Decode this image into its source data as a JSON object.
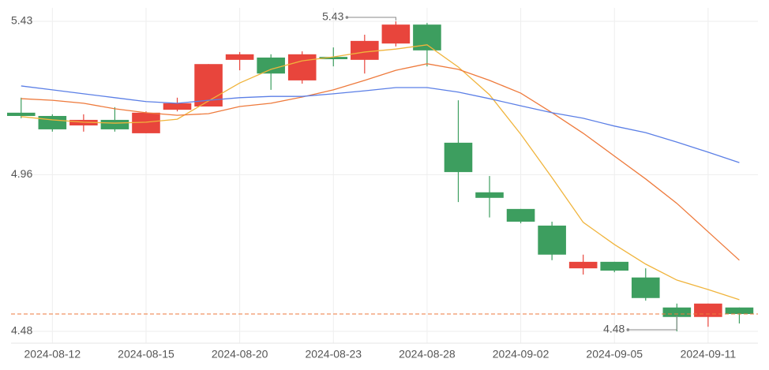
{
  "chart_data": {
    "type": "candlestick",
    "categories": [
      null,
      "2024-08-12",
      null,
      null,
      "2024-08-15",
      null,
      null,
      "2024-08-20",
      null,
      null,
      "2024-08-23",
      null,
      null,
      "2024-08-28",
      null,
      null,
      "2024-09-02",
      null,
      null,
      "2024-09-05",
      null,
      null,
      "2024-09-11",
      null
    ],
    "open": [
      5.15,
      5.14,
      5.111,
      5.128,
      5.087,
      5.159,
      5.169,
      5.312,
      5.319,
      5.249,
      5.321,
      5.312,
      5.362,
      5.42,
      5.058,
      4.906,
      4.855,
      4.804,
      4.673,
      4.693,
      4.645,
      4.553,
      4.524,
      4.553
    ],
    "high": [
      5.196,
      5.145,
      5.145,
      5.167,
      5.154,
      5.196,
      5.299,
      5.336,
      5.329,
      5.338,
      5.35,
      5.389,
      5.43,
      5.425,
      5.188,
      4.956,
      4.855,
      4.816,
      4.715,
      4.693,
      4.673,
      4.565,
      4.565,
      4.553
    ],
    "low": [
      5.133,
      5.092,
      5.092,
      5.092,
      5.087,
      5.154,
      5.169,
      5.28,
      5.22,
      5.239,
      5.292,
      5.27,
      5.353,
      5.292,
      4.876,
      4.829,
      4.811,
      4.698,
      4.654,
      4.661,
      4.574,
      4.48,
      4.494,
      4.504
    ],
    "close": [
      5.14,
      5.099,
      5.128,
      5.099,
      5.15,
      5.179,
      5.299,
      5.329,
      5.27,
      5.329,
      5.314,
      5.37,
      5.42,
      5.341,
      4.968,
      4.889,
      4.816,
      4.715,
      4.693,
      4.666,
      4.582,
      4.524,
      4.565,
      4.533
    ],
    "up_color": "#e8453c",
    "down_color": "#3d9e5f",
    "ma_lines": [
      {
        "color": "#f0b43c",
        "values": [
          5.138,
          5.128,
          5.121,
          5.118,
          5.121,
          5.13,
          5.186,
          5.241,
          5.283,
          5.309,
          5.321,
          5.336,
          5.345,
          5.358,
          5.29,
          5.205,
          5.084,
          4.951,
          4.814,
          4.746,
          4.686,
          4.637,
          4.608,
          4.577
        ]
      },
      {
        "color": "#ee7a3c",
        "values": [
          5.193,
          5.188,
          5.179,
          5.162,
          5.15,
          5.142,
          5.147,
          5.169,
          5.179,
          5.198,
          5.22,
          5.249,
          5.28,
          5.3,
          5.283,
          5.249,
          5.21,
          5.15,
          5.087,
          5.017,
          4.947,
          4.872,
          4.785,
          4.698
        ]
      },
      {
        "color": "#5b7fe6",
        "values": [
          5.232,
          5.22,
          5.208,
          5.196,
          5.184,
          5.179,
          5.188,
          5.196,
          5.2,
          5.2,
          5.208,
          5.217,
          5.227,
          5.227,
          5.213,
          5.193,
          5.171,
          5.15,
          5.133,
          5.109,
          5.089,
          5.06,
          5.029,
          4.997
        ]
      }
    ],
    "last_price_line": true,
    "last_price_color": "#ee7a3c",
    "ylim": [
      4.455,
      5.47
    ],
    "yticks": [
      4.48,
      4.96,
      5.43
    ],
    "grid": true
  }
}
